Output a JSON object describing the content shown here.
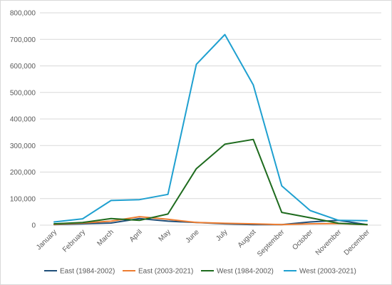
{
  "chart_data": {
    "type": "line",
    "title": "",
    "xlabel": "",
    "ylabel": "",
    "categories": [
      "January",
      "February",
      "March",
      "April",
      "May",
      "June",
      "July",
      "August",
      "September",
      "October",
      "November",
      "December"
    ],
    "ylim": [
      0,
      800000
    ],
    "y_ticks": [
      0,
      100000,
      200000,
      300000,
      400000,
      500000,
      600000,
      700000,
      800000
    ],
    "y_tick_labels": [
      "0",
      "100,000",
      "200,000",
      "300,000",
      "400,000",
      "500,000",
      "600,000",
      "700,000",
      "800,000"
    ],
    "grid": "horizontal",
    "legend_position": "bottom",
    "series": [
      {
        "name": "East (1984-2002)",
        "color": "#1f4e79",
        "values": [
          2000,
          5000,
          8000,
          25000,
          15000,
          10000,
          5000,
          2000,
          2000,
          12000,
          18000,
          2000
        ]
      },
      {
        "name": "East (2003-2021)",
        "color": "#ed7d31",
        "values": [
          3000,
          8000,
          15000,
          32000,
          22000,
          10000,
          7000,
          5000,
          2000,
          5000,
          6000,
          2000
        ]
      },
      {
        "name": "West (1984-2002)",
        "color": "#1e6b1e",
        "values": [
          5000,
          10000,
          25000,
          18000,
          42000,
          213000,
          305000,
          323000,
          48000,
          28000,
          7000,
          2000
        ]
      },
      {
        "name": "West (2003-2021)",
        "color": "#1fa0d0",
        "values": [
          12000,
          24000,
          93000,
          96000,
          116000,
          606000,
          718000,
          528000,
          148000,
          55000,
          18000,
          17000
        ]
      }
    ]
  }
}
